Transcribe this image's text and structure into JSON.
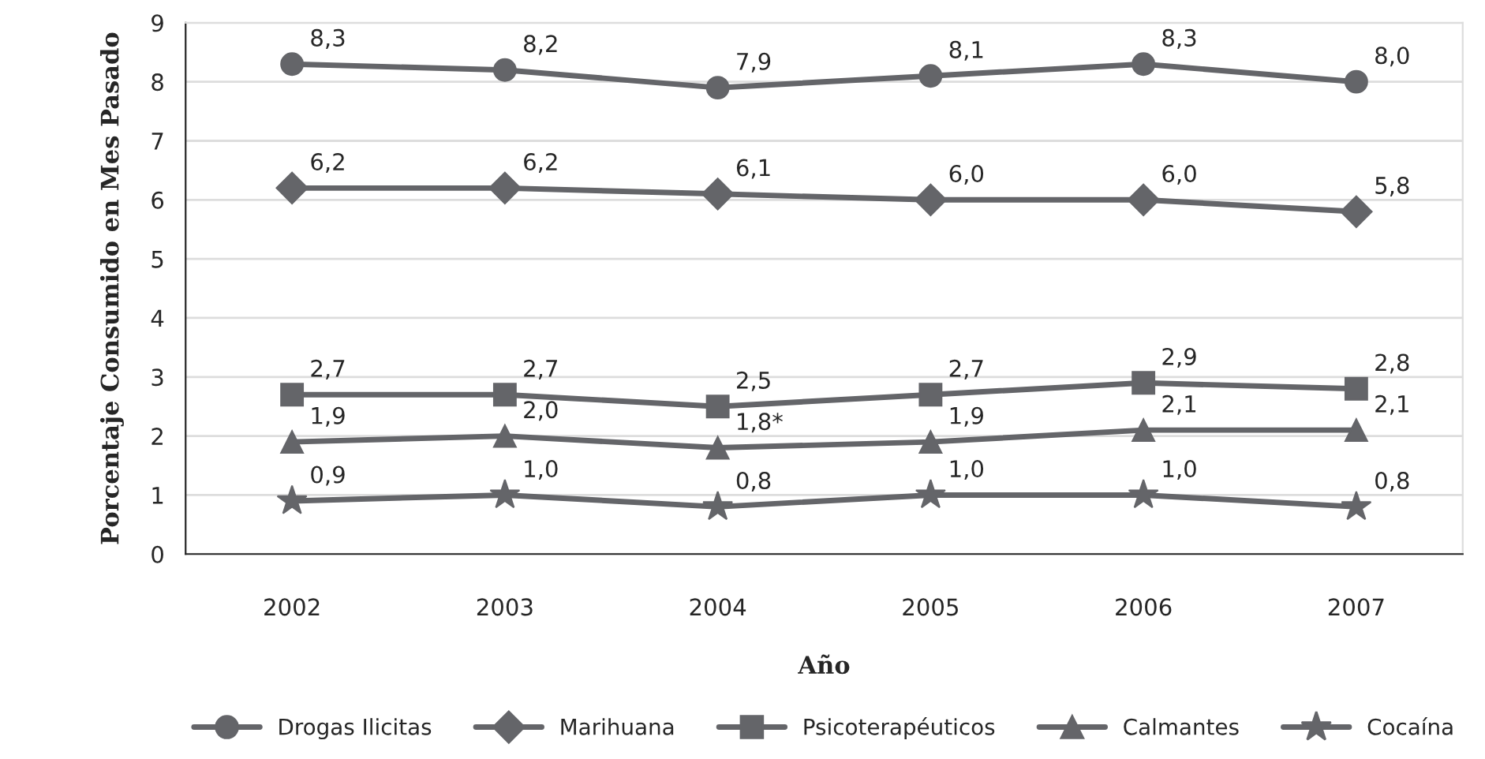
{
  "chart_data": {
    "type": "line",
    "xlabel": "Año",
    "ylabel": "Porcentaje Consumido en Mes Pasado",
    "categories": [
      "2002",
      "2003",
      "2004",
      "2005",
      "2006",
      "2007"
    ],
    "ylim": [
      0,
      9
    ],
    "yticks": [
      0,
      1,
      2,
      3,
      4,
      5,
      6,
      7,
      8,
      9
    ],
    "grid": "y",
    "legend": "bottom",
    "line_style": "solid",
    "series": [
      {
        "name": "Drogas Ilicitas",
        "color": "#646569",
        "marker": "circle",
        "values": [
          8.3,
          8.2,
          7.9,
          8.1,
          8.3,
          8.0
        ],
        "value_labels": [
          "8,3",
          "8,2",
          "7,9",
          "8,1",
          "8,3",
          "8,0"
        ]
      },
      {
        "name": "Marihuana",
        "color": "#646569",
        "marker": "diamond",
        "values": [
          6.2,
          6.2,
          6.1,
          6.0,
          6.0,
          5.8
        ],
        "value_labels": [
          "6,2",
          "6,2",
          "6,1",
          "6,0",
          "6,0",
          "5,8"
        ]
      },
      {
        "name": "Psicoterapéuticos",
        "color": "#646569",
        "marker": "square",
        "values": [
          2.7,
          2.7,
          2.5,
          2.7,
          2.9,
          2.8
        ],
        "value_labels": [
          "2,7",
          "2,7",
          "2,5",
          "2,7",
          "2,9",
          "2,8"
        ]
      },
      {
        "name": "Calmantes",
        "color": "#646569",
        "marker": "triangle",
        "values": [
          1.9,
          2.0,
          1.8,
          1.9,
          2.1,
          2.1
        ],
        "value_labels": [
          "1,9",
          "2,0",
          "1,8*",
          "1,9",
          "2,1",
          "2,1"
        ]
      },
      {
        "name": "Cocaína",
        "color": "#646569",
        "marker": "star",
        "values": [
          0.9,
          1.0,
          0.8,
          1.0,
          1.0,
          0.8
        ],
        "value_labels": [
          "0,9",
          "1,0",
          "0,8",
          "1,0",
          "1,0",
          "0,8"
        ]
      }
    ]
  }
}
